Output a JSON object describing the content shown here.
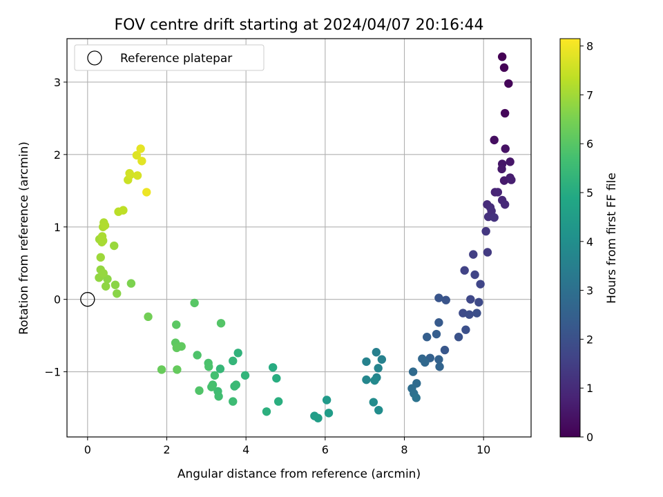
{
  "chart_data": {
    "type": "scatter",
    "title": "FOV centre drift starting at 2024/04/07 20:16:44",
    "xlabel": "Angular distance from reference (arcmin)",
    "ylabel": "Rotation from reference (arcmin)",
    "xlim": [
      -0.52,
      11.2
    ],
    "ylim": [
      -1.9,
      3.6
    ],
    "xticks": [
      0,
      2,
      4,
      6,
      8,
      10
    ],
    "yticks": [
      -1,
      0,
      1,
      2,
      3
    ],
    "grid": true,
    "legend": {
      "placement": "upper-left",
      "entries": [
        "Reference platepar"
      ]
    },
    "reference_point": {
      "x": 0,
      "y": 0
    },
    "colorbar": {
      "label": "Hours from first FF file",
      "range": [
        0,
        8.15
      ],
      "ticks": [
        0,
        1,
        2,
        3,
        4,
        5,
        6,
        7,
        8
      ],
      "colormap": "viridis"
    },
    "points": [
      {
        "x": 10.47,
        "y": 3.35,
        "c": 0.0
      },
      {
        "x": 10.52,
        "y": 3.2,
        "c": 0.05
      },
      {
        "x": 10.63,
        "y": 2.98,
        "c": 0.1
      },
      {
        "x": 10.54,
        "y": 2.57,
        "c": 0.15
      },
      {
        "x": 10.27,
        "y": 2.2,
        "c": 0.3
      },
      {
        "x": 10.55,
        "y": 2.08,
        "c": 0.4
      },
      {
        "x": 10.47,
        "y": 1.87,
        "c": 0.5
      },
      {
        "x": 10.67,
        "y": 1.9,
        "c": 0.5
      },
      {
        "x": 10.46,
        "y": 1.8,
        "c": 0.55
      },
      {
        "x": 10.52,
        "y": 1.64,
        "c": 0.6
      },
      {
        "x": 10.67,
        "y": 1.68,
        "c": 0.65
      },
      {
        "x": 10.7,
        "y": 1.65,
        "c": 0.7
      },
      {
        "x": 10.29,
        "y": 1.48,
        "c": 0.8
      },
      {
        "x": 10.36,
        "y": 1.48,
        "c": 0.85
      },
      {
        "x": 10.47,
        "y": 1.37,
        "c": 0.9
      },
      {
        "x": 10.54,
        "y": 1.31,
        "c": 0.95
      },
      {
        "x": 10.09,
        "y": 1.31,
        "c": 1.0
      },
      {
        "x": 10.17,
        "y": 1.27,
        "c": 1.05
      },
      {
        "x": 10.2,
        "y": 1.22,
        "c": 1.1
      },
      {
        "x": 10.12,
        "y": 1.14,
        "c": 1.15
      },
      {
        "x": 10.27,
        "y": 1.13,
        "c": 1.2
      },
      {
        "x": 10.06,
        "y": 0.94,
        "c": 1.3
      },
      {
        "x": 10.1,
        "y": 0.65,
        "c": 1.4
      },
      {
        "x": 9.74,
        "y": 0.62,
        "c": 1.5
      },
      {
        "x": 9.52,
        "y": 0.4,
        "c": 1.6
      },
      {
        "x": 9.78,
        "y": 0.34,
        "c": 1.65
      },
      {
        "x": 9.92,
        "y": 0.21,
        "c": 1.7
      },
      {
        "x": 9.67,
        "y": 0.0,
        "c": 1.75
      },
      {
        "x": 9.88,
        "y": -0.04,
        "c": 1.8
      },
      {
        "x": 9.48,
        "y": -0.19,
        "c": 1.85
      },
      {
        "x": 9.64,
        "y": -0.21,
        "c": 1.9
      },
      {
        "x": 9.83,
        "y": -0.19,
        "c": 1.95
      },
      {
        "x": 9.55,
        "y": -0.42,
        "c": 2.0
      },
      {
        "x": 9.37,
        "y": -0.52,
        "c": 2.05
      },
      {
        "x": 9.05,
        "y": -0.01,
        "c": 2.1
      },
      {
        "x": 8.87,
        "y": 0.02,
        "c": 2.15
      },
      {
        "x": 9.02,
        "y": -0.7,
        "c": 2.2
      },
      {
        "x": 8.87,
        "y": -0.32,
        "c": 2.3
      },
      {
        "x": 8.81,
        "y": -0.48,
        "c": 2.4
      },
      {
        "x": 8.57,
        "y": -0.52,
        "c": 2.45
      },
      {
        "x": 8.65,
        "y": -0.81,
        "c": 2.5
      },
      {
        "x": 8.87,
        "y": -0.83,
        "c": 2.55
      },
      {
        "x": 8.89,
        "y": -0.93,
        "c": 2.6
      },
      {
        "x": 8.45,
        "y": -0.82,
        "c": 2.7
      },
      {
        "x": 8.52,
        "y": -0.87,
        "c": 2.75
      },
      {
        "x": 8.22,
        "y": -1.0,
        "c": 2.8
      },
      {
        "x": 8.31,
        "y": -1.16,
        "c": 2.85
      },
      {
        "x": 8.19,
        "y": -1.23,
        "c": 2.9
      },
      {
        "x": 8.24,
        "y": -1.3,
        "c": 3.0
      },
      {
        "x": 8.3,
        "y": -1.36,
        "c": 3.1
      },
      {
        "x": 7.29,
        "y": -0.73,
        "c": 3.5
      },
      {
        "x": 7.43,
        "y": -0.83,
        "c": 3.55
      },
      {
        "x": 7.04,
        "y": -0.86,
        "c": 3.6
      },
      {
        "x": 7.34,
        "y": -0.95,
        "c": 3.65
      },
      {
        "x": 7.3,
        "y": -1.08,
        "c": 3.7
      },
      {
        "x": 7.04,
        "y": -1.11,
        "c": 3.75
      },
      {
        "x": 7.25,
        "y": -1.12,
        "c": 3.8
      },
      {
        "x": 7.22,
        "y": -1.42,
        "c": 3.9
      },
      {
        "x": 7.35,
        "y": -1.53,
        "c": 3.95
      },
      {
        "x": 6.04,
        "y": -1.39,
        "c": 4.4
      },
      {
        "x": 6.09,
        "y": -1.57,
        "c": 4.45
      },
      {
        "x": 5.73,
        "y": -1.61,
        "c": 4.5
      },
      {
        "x": 5.82,
        "y": -1.64,
        "c": 4.55
      },
      {
        "x": 4.68,
        "y": -0.94,
        "c": 5.0
      },
      {
        "x": 4.77,
        "y": -1.09,
        "c": 5.05
      },
      {
        "x": 4.82,
        "y": -1.41,
        "c": 5.1
      },
      {
        "x": 4.52,
        "y": -1.55,
        "c": 5.15
      },
      {
        "x": 3.8,
        "y": -0.74,
        "c": 5.25
      },
      {
        "x": 3.98,
        "y": -1.05,
        "c": 5.3
      },
      {
        "x": 3.67,
        "y": -0.85,
        "c": 5.35
      },
      {
        "x": 3.35,
        "y": -0.96,
        "c": 5.4
      },
      {
        "x": 3.71,
        "y": -1.2,
        "c": 5.45
      },
      {
        "x": 3.75,
        "y": -1.18,
        "c": 5.5
      },
      {
        "x": 3.67,
        "y": -1.41,
        "c": 5.55
      },
      {
        "x": 3.29,
        "y": -1.27,
        "c": 5.6
      },
      {
        "x": 3.31,
        "y": -1.34,
        "c": 5.65
      },
      {
        "x": 3.21,
        "y": -1.05,
        "c": 5.7
      },
      {
        "x": 3.16,
        "y": -1.18,
        "c": 5.72
      },
      {
        "x": 3.13,
        "y": -1.21,
        "c": 5.75
      },
      {
        "x": 3.05,
        "y": -0.88,
        "c": 5.8
      },
      {
        "x": 3.06,
        "y": -0.93,
        "c": 5.82
      },
      {
        "x": 2.77,
        "y": -0.77,
        "c": 5.85
      },
      {
        "x": 2.82,
        "y": -1.26,
        "c": 5.9
      },
      {
        "x": 3.37,
        "y": -0.33,
        "c": 5.95
      },
      {
        "x": 2.7,
        "y": -0.05,
        "c": 6.0
      },
      {
        "x": 2.24,
        "y": -0.35,
        "c": 6.05
      },
      {
        "x": 2.22,
        "y": -0.6,
        "c": 6.1
      },
      {
        "x": 2.3,
        "y": -0.65,
        "c": 6.12
      },
      {
        "x": 2.37,
        "y": -0.65,
        "c": 6.15
      },
      {
        "x": 2.25,
        "y": -0.67,
        "c": 6.18
      },
      {
        "x": 2.26,
        "y": -0.97,
        "c": 6.2
      },
      {
        "x": 1.87,
        "y": -0.97,
        "c": 6.25
      },
      {
        "x": 1.53,
        "y": -0.24,
        "c": 6.4
      },
      {
        "x": 1.1,
        "y": 0.22,
        "c": 6.55
      },
      {
        "x": 0.74,
        "y": 0.08,
        "c": 6.7
      },
      {
        "x": 0.7,
        "y": 0.2,
        "c": 6.72
      },
      {
        "x": 0.5,
        "y": 0.28,
        "c": 6.75
      },
      {
        "x": 0.46,
        "y": 0.18,
        "c": 6.78
      },
      {
        "x": 0.29,
        "y": 0.3,
        "c": 6.8
      },
      {
        "x": 0.33,
        "y": 0.41,
        "c": 6.82
      },
      {
        "x": 0.4,
        "y": 0.36,
        "c": 6.85
      },
      {
        "x": 0.67,
        "y": 0.74,
        "c": 6.9
      },
      {
        "x": 0.33,
        "y": 0.58,
        "c": 6.95
      },
      {
        "x": 0.3,
        "y": 0.83,
        "c": 7.0
      },
      {
        "x": 0.36,
        "y": 0.79,
        "c": 7.05
      },
      {
        "x": 0.39,
        "y": 0.81,
        "c": 7.08
      },
      {
        "x": 0.37,
        "y": 0.87,
        "c": 7.1
      },
      {
        "x": 0.39,
        "y": 1.0,
        "c": 7.12
      },
      {
        "x": 0.41,
        "y": 1.06,
        "c": 7.15
      },
      {
        "x": 0.44,
        "y": 1.02,
        "c": 7.18
      },
      {
        "x": 0.78,
        "y": 1.21,
        "c": 7.3
      },
      {
        "x": 0.9,
        "y": 1.23,
        "c": 7.35
      },
      {
        "x": 1.02,
        "y": 1.65,
        "c": 7.5
      },
      {
        "x": 1.06,
        "y": 1.74,
        "c": 7.55
      },
      {
        "x": 1.08,
        "y": 1.72,
        "c": 7.6
      },
      {
        "x": 1.26,
        "y": 1.71,
        "c": 7.65
      },
      {
        "x": 1.24,
        "y": 1.99,
        "c": 7.75
      },
      {
        "x": 1.37,
        "y": 1.91,
        "c": 7.8
      },
      {
        "x": 1.34,
        "y": 2.08,
        "c": 7.85
      },
      {
        "x": 1.49,
        "y": 1.48,
        "c": 7.95
      }
    ]
  }
}
